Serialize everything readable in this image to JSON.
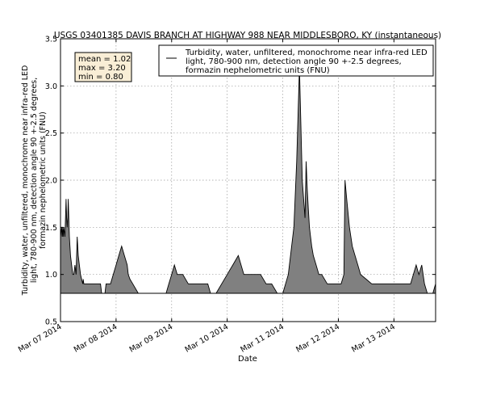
{
  "chart_data": {
    "type": "area",
    "title": "USGS 03401385 DAVIS BRANCH AT HIGHWAY 988 NEAR MIDDLESBORO, KY (instantaneous)",
    "xlabel": "Date",
    "ylabel_lines": [
      "Turbidity, water, unfiltered, monochrome near infra-red LED",
      "light, 780-900 nm, detection angle 90 +-2.5 degrees,",
      "formazin nephelometric units (FNU)"
    ],
    "legend": {
      "placement": "top-right",
      "lines": [
        "Turbidity, water, unfiltered, monochrome near infra-red LED",
        "light, 780-900 nm, detection angle 90 +-2.5 degrees,",
        "formazin nephelometric units (FNU)"
      ]
    },
    "stats_box": {
      "lines": [
        "mean = 1.02",
        "max = 3.20",
        "min = 0.80"
      ]
    },
    "ylim": [
      0.5,
      3.5
    ],
    "y_ticks": [
      {
        "value": 0.5,
        "label": "0.5"
      },
      {
        "value": 1.0,
        "label": "1.0"
      },
      {
        "value": 1.5,
        "label": "1.5"
      },
      {
        "value": 2.0,
        "label": "2.0"
      },
      {
        "value": 2.5,
        "label": "2.5"
      },
      {
        "value": 3.0,
        "label": "3.0"
      },
      {
        "value": 3.5,
        "label": "3.5"
      }
    ],
    "x_range_days": [
      0,
      6.75
    ],
    "x_ticks": [
      {
        "value": 0,
        "label": "Mar 07 2014"
      },
      {
        "value": 1,
        "label": "Mar 08 2014"
      },
      {
        "value": 2,
        "label": "Mar 09 2014"
      },
      {
        "value": 3,
        "label": "Mar 10 2014"
      },
      {
        "value": 4,
        "label": "Mar 11 2014"
      },
      {
        "value": 5,
        "label": "Mar 12 2014"
      },
      {
        "value": 6,
        "label": "Mar 13 2014"
      }
    ],
    "grid": true,
    "fill_color": "#808080",
    "line_color": "#000000",
    "series": [
      {
        "x": [
          0,
          0.02,
          0.03,
          0.04,
          0.05,
          0.06,
          0.08,
          0.1,
          0.11,
          0.12,
          0.13,
          0.14,
          0.15,
          0.16,
          0.17,
          0.18,
          0.2,
          0.22,
          0.24,
          0.26,
          0.28,
          0.3,
          0.32,
          0.34,
          0.36,
          0.38,
          0.4,
          0.41,
          0.42,
          0.43,
          0.44,
          0.46,
          0.48,
          0.5,
          0.52,
          0.54,
          0.56,
          0.58,
          0.6,
          0.65,
          0.7,
          0.72,
          0.74,
          0.78,
          0.8,
          0.82,
          0.84,
          0.88,
          0.9,
          0.95,
          1.0,
          1.05,
          1.1,
          1.15,
          1.2,
          1.22,
          1.25,
          1.3,
          1.4,
          1.6,
          1.65,
          1.7,
          1.8,
          1.9,
          1.95,
          2.0,
          2.05,
          2.1,
          2.15,
          2.2,
          2.3,
          2.4,
          2.5,
          2.6,
          2.65,
          2.7,
          2.8,
          2.9,
          3.0,
          3.05,
          3.1,
          3.2,
          3.3,
          3.5,
          3.6,
          3.7,
          3.8,
          3.9,
          4.0,
          4.1,
          4.2,
          4.25,
          4.3,
          4.35,
          4.4,
          4.42,
          4.44,
          4.46,
          4.48,
          4.5,
          4.52,
          4.55,
          4.6,
          4.65,
          4.7,
          4.8,
          4.9,
          5.0,
          5.05,
          5.1,
          5.12,
          5.15,
          5.2,
          5.25,
          5.3,
          5.35,
          5.4,
          5.5,
          5.6,
          5.7,
          5.8,
          5.9,
          6.0,
          6.1,
          6.2,
          6.3,
          6.35,
          6.4,
          6.45,
          6.5,
          6.55,
          6.6,
          6.65,
          6.7,
          6.75
        ],
        "y": [
          1.4,
          1.5,
          1.4,
          1.5,
          1.4,
          1.5,
          1.4,
          1.8,
          1.6,
          1.5,
          1.6,
          1.8,
          1.6,
          1.4,
          1.3,
          1.2,
          1.1,
          1.0,
          1.0,
          1.1,
          1.0,
          1.4,
          1.2,
          1.1,
          1.0,
          0.95,
          0.9,
          0.95,
          0.9,
          0.9,
          0.9,
          0.9,
          0.9,
          0.9,
          0.9,
          0.9,
          0.9,
          0.9,
          0.9,
          0.9,
          0.9,
          0.9,
          0.8,
          0.8,
          0.8,
          0.9,
          0.9,
          0.9,
          0.9,
          1.0,
          1.1,
          1.2,
          1.3,
          1.2,
          1.1,
          1.0,
          0.95,
          0.9,
          0.8,
          0.8,
          0.8,
          0.8,
          0.8,
          0.8,
          0.9,
          1.0,
          1.1,
          1.0,
          1.0,
          1.0,
          0.9,
          0.9,
          0.9,
          0.9,
          0.9,
          0.8,
          0.8,
          0.9,
          1.0,
          1.05,
          1.1,
          1.2,
          1.0,
          1.0,
          1.0,
          0.9,
          0.9,
          0.8,
          0.8,
          1.0,
          1.5,
          2.2,
          3.2,
          2.0,
          1.6,
          2.2,
          1.9,
          1.7,
          1.5,
          1.4,
          1.3,
          1.2,
          1.1,
          1.0,
          1.0,
          0.9,
          0.9,
          0.9,
          0.9,
          1.0,
          2.0,
          1.8,
          1.5,
          1.3,
          1.2,
          1.1,
          1.0,
          0.95,
          0.9,
          0.9,
          0.9,
          0.9,
          0.9,
          0.9,
          0.9,
          0.9,
          1.0,
          1.1,
          1.0,
          1.1,
          0.9,
          0.8,
          0.8,
          0.8,
          0.9
        ]
      }
    ]
  }
}
